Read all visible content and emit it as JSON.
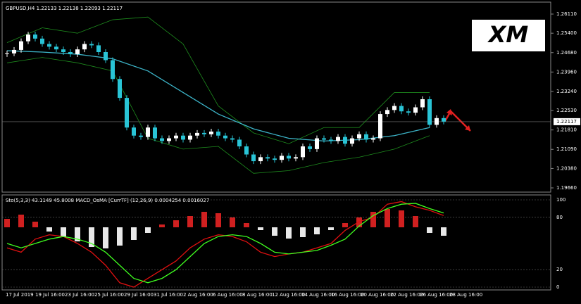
{
  "header": "GBPUSD,H4  1.22133 1.22138 1.22093 1.22117",
  "logo": "XM",
  "main": {
    "yticks": [
      {
        "value": 1.2611,
        "label": "1.26110"
      },
      {
        "value": 1.254,
        "label": "1.25400"
      },
      {
        "value": 1.2468,
        "label": "1.24680"
      },
      {
        "value": 1.2396,
        "label": "1.23960"
      },
      {
        "value": 1.2324,
        "label": "1.23240"
      },
      {
        "value": 1.2253,
        "label": "1.22530"
      },
      {
        "value": 1.2181,
        "label": "1.21810"
      },
      {
        "value": 1.2109,
        "label": "1.21090"
      },
      {
        "value": 1.2038,
        "label": "1.20380"
      },
      {
        "value": 1.1966,
        "label": "1.19660"
      }
    ],
    "current": {
      "value": 1.22117,
      "label": "1.22117"
    },
    "closes": [
      1.2465,
      1.2478,
      1.251,
      1.2535,
      1.252,
      1.25,
      1.249,
      1.248,
      1.247,
      1.2462,
      1.248,
      1.25,
      1.2495,
      1.247,
      1.244,
      1.237,
      1.23,
      1.219,
      1.216,
      1.2155,
      1.219,
      1.215,
      1.214,
      1.215,
      1.216,
      1.2145,
      1.216,
      1.217,
      1.2165,
      1.2175,
      1.216,
      1.215,
      1.2145,
      1.212,
      1.209,
      1.2065,
      1.208,
      1.2075,
      1.207,
      1.2085,
      1.2075,
      1.208,
      1.212,
      1.211,
      1.215,
      1.2145,
      1.214,
      1.2155,
      1.213,
      1.215,
      1.2165,
      1.2145,
      1.215,
      1.224,
      1.2255,
      1.227,
      1.225,
      1.2245,
      1.2265,
      1.2295,
      1.22,
      1.2225,
      1.2212
    ],
    "ma": [
      1.2475,
      1.247,
      1.2462,
      1.2445,
      1.24,
      1.232,
      1.224,
      1.2185,
      1.215,
      1.214,
      1.2145,
      1.216,
      1.219
    ],
    "upper": [
      1.2505,
      1.256,
      1.254,
      1.259,
      1.26,
      1.25,
      1.227,
      1.217,
      1.213,
      1.219,
      1.219,
      1.232,
      1.232
    ],
    "lower": [
      1.243,
      1.245,
      1.243,
      1.24,
      1.215,
      1.211,
      1.212,
      1.202,
      1.203,
      1.206,
      1.208,
      1.211,
      1.216
    ]
  },
  "sub": {
    "header": "Sto(5,3,3) 43.1149 45.8008  MACD_OsMA [CurrTF] (12,26,9) 0.0004254 0.0016027",
    "yticks": [
      100,
      80,
      20,
      0
    ],
    "red": [
      45,
      40,
      55,
      60,
      58,
      50,
      40,
      25,
      5,
      0,
      10,
      20,
      30,
      45,
      55,
      60,
      58,
      52,
      40,
      35,
      38,
      40,
      45,
      50,
      65,
      75,
      80,
      95,
      98,
      92,
      88,
      82
    ],
    "green": [
      50,
      45,
      50,
      55,
      58,
      55,
      50,
      40,
      25,
      10,
      5,
      10,
      20,
      35,
      50,
      58,
      60,
      58,
      50,
      40,
      38,
      40,
      42,
      48,
      55,
      70,
      82,
      90,
      95,
      96,
      90,
      85
    ],
    "histogram": [
      12,
      18,
      8,
      -6,
      -14,
      -20,
      -28,
      -30,
      -26,
      -18,
      -8,
      4,
      10,
      16,
      22,
      20,
      14,
      6,
      -4,
      -12,
      -16,
      -14,
      -10,
      -4,
      6,
      14,
      22,
      26,
      24,
      16,
      -8,
      -12
    ]
  },
  "dates": [
    "17 Jul 2019",
    "19 Jul 16:00",
    "23 Jul 16:00",
    "25 Jul 16:00",
    "29 Jul 16:00",
    "31 Jul 16:00",
    "2 Aug 16:00",
    "6 Aug 16:00",
    "8 Aug 16:00",
    "12 Aug 16:00",
    "14 Aug 16:00",
    "16 Aug 16:00",
    "20 Aug 16:00",
    "22 Aug 16:00",
    "26 Aug 16:00",
    "28 Aug 16:00"
  ]
}
